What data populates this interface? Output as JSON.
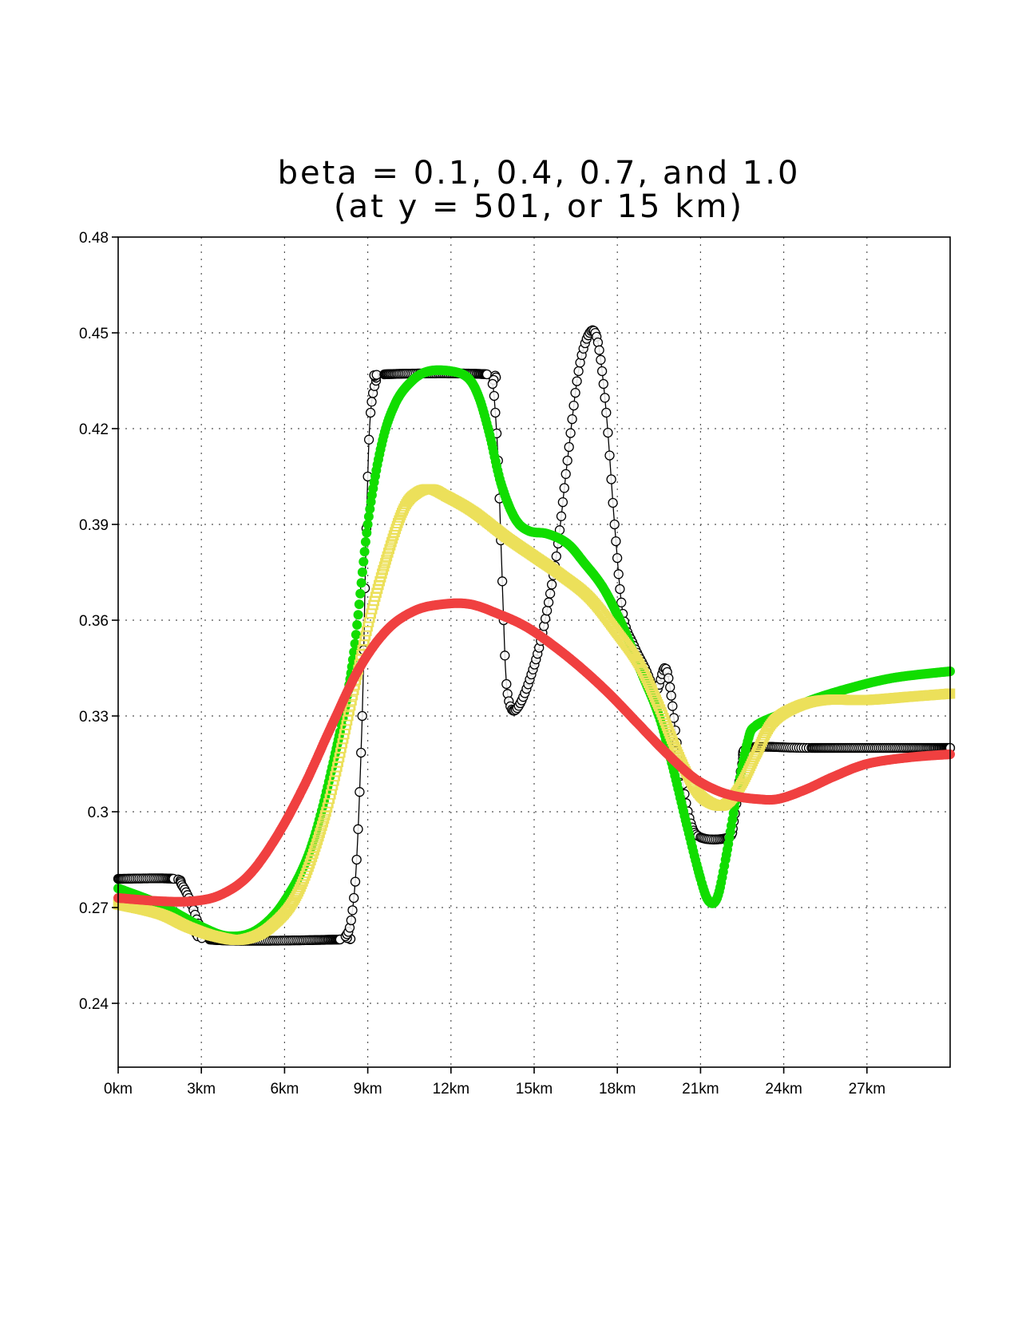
{
  "chart_data": {
    "type": "line",
    "title": "beta = 0.1, 0.4, 0.7, and 1.0",
    "subtitle": "(at y = 501, or 15 km)",
    "xlabel": "",
    "ylabel": "",
    "xlim": [
      0,
      30
    ],
    "ylim": [
      0.22,
      0.48
    ],
    "grid": true,
    "legend": "none",
    "x_ticks": [
      0,
      3,
      6,
      9,
      12,
      15,
      18,
      21,
      24,
      27
    ],
    "x_tick_labels": [
      "0km",
      "3km",
      "6km",
      "9km",
      "12km",
      "15km",
      "18km",
      "21km",
      "24km",
      "27km"
    ],
    "y_ticks": [
      0.24,
      0.27,
      0.3,
      0.33,
      0.36,
      0.39,
      0.42,
      0.45,
      0.48
    ],
    "y_tick_labels": [
      "0.24",
      "0.27",
      "0.3",
      "0.33",
      "0.36",
      "0.39",
      "0.42",
      "0.45",
      "0.48"
    ],
    "series": [
      {
        "color": "#000000",
        "marker": "open-circle",
        "points": [
          [
            0,
            0.279
          ],
          [
            2.0,
            0.279
          ],
          [
            2.3,
            0.277
          ],
          [
            2.6,
            0.272
          ],
          [
            2.9,
            0.265
          ],
          [
            3.3,
            0.26
          ],
          [
            8.0,
            0.26
          ],
          [
            8.2,
            0.261
          ],
          [
            8.4,
            0.266
          ],
          [
            8.6,
            0.285
          ],
          [
            8.8,
            0.33
          ],
          [
            8.9,
            0.37
          ],
          [
            9.0,
            0.405
          ],
          [
            9.1,
            0.425
          ],
          [
            9.3,
            0.435
          ],
          [
            9.6,
            0.437
          ],
          [
            13.3,
            0.437
          ],
          [
            13.5,
            0.434
          ],
          [
            13.6,
            0.425
          ],
          [
            13.7,
            0.41
          ],
          [
            13.8,
            0.385
          ],
          [
            13.9,
            0.36
          ],
          [
            14.0,
            0.34
          ],
          [
            14.2,
            0.332
          ],
          [
            14.5,
            0.334
          ],
          [
            14.9,
            0.343
          ],
          [
            15.3,
            0.356
          ],
          [
            15.8,
            0.38
          ],
          [
            16.2,
            0.41
          ],
          [
            16.6,
            0.438
          ],
          [
            17.0,
            0.45
          ],
          [
            17.3,
            0.447
          ],
          [
            17.6,
            0.425
          ],
          [
            17.9,
            0.39
          ],
          [
            18.2,
            0.362
          ],
          [
            18.6,
            0.352
          ],
          [
            19.0,
            0.345
          ],
          [
            19.4,
            0.338
          ],
          [
            19.7,
            0.345
          ],
          [
            19.9,
            0.339
          ],
          [
            20.2,
            0.318
          ],
          [
            20.6,
            0.298
          ],
          [
            21.0,
            0.292
          ],
          [
            22.0,
            0.292
          ],
          [
            22.2,
            0.297
          ],
          [
            22.5,
            0.315
          ],
          [
            22.8,
            0.32
          ],
          [
            25.0,
            0.32
          ],
          [
            30,
            0.32
          ]
        ]
      },
      {
        "color": "#11dd00",
        "marker": "filled-circle",
        "points": [
          [
            0,
            0.276
          ],
          [
            1.5,
            0.271
          ],
          [
            3.0,
            0.264
          ],
          [
            4.0,
            0.261
          ],
          [
            5.0,
            0.263
          ],
          [
            6.0,
            0.272
          ],
          [
            7.0,
            0.29
          ],
          [
            8.0,
            0.325
          ],
          [
            8.5,
            0.35
          ],
          [
            9.0,
            0.39
          ],
          [
            9.5,
            0.415
          ],
          [
            10.0,
            0.428
          ],
          [
            10.6,
            0.435
          ],
          [
            11.2,
            0.438
          ],
          [
            12.0,
            0.438
          ],
          [
            12.6,
            0.436
          ],
          [
            13.0,
            0.43
          ],
          [
            13.4,
            0.418
          ],
          [
            13.8,
            0.403
          ],
          [
            14.3,
            0.392
          ],
          [
            14.8,
            0.388
          ],
          [
            15.5,
            0.387
          ],
          [
            16.2,
            0.384
          ],
          [
            16.8,
            0.378
          ],
          [
            17.5,
            0.37
          ],
          [
            18.2,
            0.358
          ],
          [
            18.8,
            0.345
          ],
          [
            19.5,
            0.33
          ],
          [
            20.0,
            0.314
          ],
          [
            20.5,
            0.296
          ],
          [
            21.0,
            0.279
          ],
          [
            21.3,
            0.272
          ],
          [
            21.6,
            0.273
          ],
          [
            21.9,
            0.285
          ],
          [
            22.3,
            0.305
          ],
          [
            22.7,
            0.322
          ],
          [
            23.0,
            0.327
          ],
          [
            24.0,
            0.331
          ],
          [
            25.0,
            0.335
          ],
          [
            26.5,
            0.339
          ],
          [
            28.0,
            0.342
          ],
          [
            30,
            0.344
          ]
        ]
      },
      {
        "color": "#ece05a",
        "marker": "open-square",
        "points": [
          [
            0,
            0.271
          ],
          [
            1.5,
            0.268
          ],
          [
            2.5,
            0.264
          ],
          [
            3.5,
            0.261
          ],
          [
            4.5,
            0.26
          ],
          [
            5.5,
            0.264
          ],
          [
            6.5,
            0.275
          ],
          [
            7.5,
            0.3
          ],
          [
            8.3,
            0.33
          ],
          [
            9.0,
            0.358
          ],
          [
            9.7,
            0.38
          ],
          [
            10.3,
            0.395
          ],
          [
            10.8,
            0.4
          ],
          [
            11.3,
            0.401
          ],
          [
            11.8,
            0.399
          ],
          [
            12.8,
            0.394
          ],
          [
            14.0,
            0.386
          ],
          [
            15.0,
            0.38
          ],
          [
            16.0,
            0.374
          ],
          [
            17.0,
            0.367
          ],
          [
            18.0,
            0.356
          ],
          [
            18.8,
            0.346
          ],
          [
            19.5,
            0.333
          ],
          [
            20.0,
            0.322
          ],
          [
            20.5,
            0.312
          ],
          [
            21.0,
            0.305
          ],
          [
            21.6,
            0.302
          ],
          [
            22.0,
            0.303
          ],
          [
            22.5,
            0.309
          ],
          [
            23.0,
            0.318
          ],
          [
            23.6,
            0.328
          ],
          [
            24.5,
            0.333
          ],
          [
            25.5,
            0.335
          ],
          [
            27.0,
            0.335
          ],
          [
            28.5,
            0.336
          ],
          [
            30,
            0.337
          ]
        ]
      },
      {
        "color": "#f04040",
        "marker": "filled-circle",
        "points": [
          [
            0,
            0.273
          ],
          [
            1.5,
            0.272
          ],
          [
            2.7,
            0.272
          ],
          [
            3.7,
            0.274
          ],
          [
            4.7,
            0.28
          ],
          [
            5.7,
            0.292
          ],
          [
            6.7,
            0.308
          ],
          [
            7.7,
            0.327
          ],
          [
            8.7,
            0.345
          ],
          [
            9.7,
            0.357
          ],
          [
            10.7,
            0.363
          ],
          [
            11.7,
            0.365
          ],
          [
            12.7,
            0.365
          ],
          [
            13.7,
            0.362
          ],
          [
            14.7,
            0.358
          ],
          [
            15.7,
            0.352
          ],
          [
            16.7,
            0.345
          ],
          [
            17.7,
            0.337
          ],
          [
            18.7,
            0.328
          ],
          [
            19.7,
            0.319
          ],
          [
            20.7,
            0.311
          ],
          [
            21.5,
            0.307
          ],
          [
            22.2,
            0.305
          ],
          [
            23.0,
            0.304
          ],
          [
            23.8,
            0.304
          ],
          [
            24.8,
            0.307
          ],
          [
            25.8,
            0.311
          ],
          [
            27.0,
            0.315
          ],
          [
            28.5,
            0.317
          ],
          [
            30,
            0.318
          ]
        ]
      }
    ]
  }
}
